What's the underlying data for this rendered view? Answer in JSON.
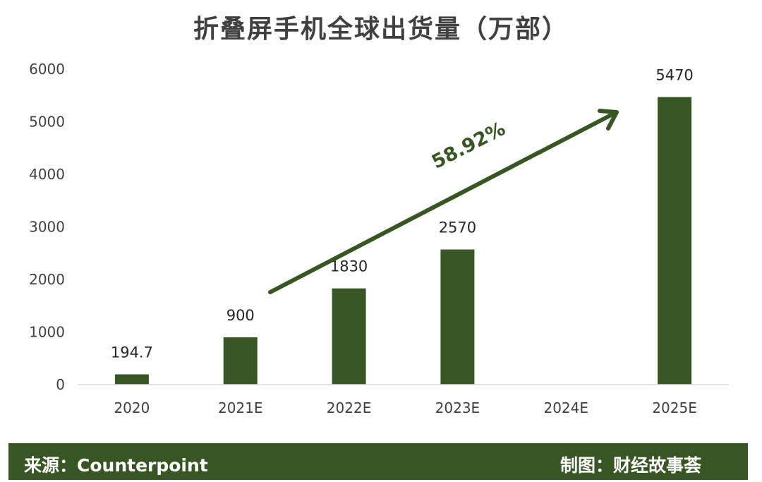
{
  "colors": {
    "bar": "#375623",
    "footer_bg": "#375623",
    "axis_line": "#d9d9d9",
    "arrow": "#375623"
  },
  "footer": {
    "source": "来源：Counterpoint",
    "credit": "制图：财经故事荟"
  },
  "chart_data": {
    "type": "bar",
    "title": "折叠屏手机全球出货量（万部）",
    "xlabel": "",
    "ylabel": "",
    "categories": [
      "2020",
      "2021E",
      "2022E",
      "2023E",
      "2024E",
      "2025E"
    ],
    "values": [
      194.7,
      900,
      1830,
      2570,
      null,
      5470
    ],
    "data_labels": [
      "194.7",
      "900",
      "1830",
      "2570",
      "",
      "5470"
    ],
    "ylim": [
      0,
      6000
    ],
    "yticks": [
      0,
      1000,
      2000,
      3000,
      4000,
      5000,
      6000
    ],
    "grid": false,
    "legend": "none",
    "annotations": [
      {
        "type": "arrow",
        "text": "58.92%",
        "meaning": "growth trend from 2021E to 2025E"
      }
    ]
  }
}
